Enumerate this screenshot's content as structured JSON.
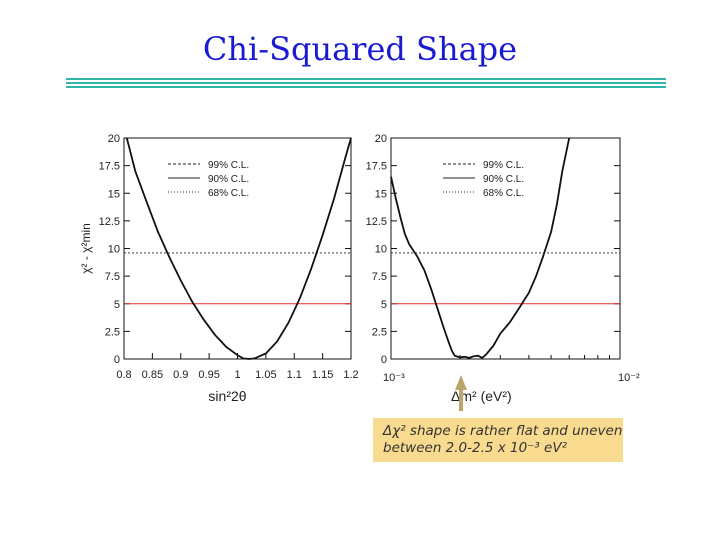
{
  "title": "Chi-Squared Shape",
  "note": {
    "line1": "Δχ² shape is rather flat and uneven",
    "line2": "between 2.0-2.5 x 10⁻³ eV²"
  },
  "colors": {
    "title": "#1a1ad0",
    "rule": "#2fb6a8",
    "red_line": "#e0302a",
    "note_bg": "#f8db8f",
    "arrow": "#b9a66b"
  },
  "chart_data": [
    {
      "type": "line",
      "xlabel": "sin²2θ",
      "ylabel": "χ² - χ²min",
      "xlim": [
        0.8,
        1.2
      ],
      "ylim": [
        0,
        20
      ],
      "xticks": [
        "0.8",
        "0.85",
        "0.9",
        "0.95",
        "1",
        "1.05",
        "1.1",
        "1.15",
        "1.2"
      ],
      "yticks": [
        "0",
        "2.5",
        "5",
        "7.5",
        "10",
        "12.5",
        "15",
        "17.5",
        "20"
      ],
      "legend": [
        {
          "label": "99% C.L.",
          "style": "dashed"
        },
        {
          "label": "90% C.L.",
          "style": "solid"
        },
        {
          "label": "68% C.L.",
          "style": "dotted"
        }
      ],
      "thresholds": [
        9.6,
        5.0
      ],
      "series": [
        {
          "x": [
            0.805,
            0.82,
            0.84,
            0.86,
            0.88,
            0.9,
            0.92,
            0.94,
            0.96,
            0.98,
            1.0,
            1.01,
            1.02,
            1.03,
            1.05,
            1.07,
            1.09,
            1.11,
            1.13,
            1.15,
            1.17,
            1.19,
            1.2
          ],
          "y": [
            20,
            17.0,
            14.2,
            11.5,
            9.2,
            7.1,
            5.2,
            3.6,
            2.2,
            1.1,
            0.35,
            0.05,
            0.0,
            0.05,
            0.5,
            1.6,
            3.3,
            5.5,
            8.2,
            11.2,
            14.5,
            18.2,
            20
          ]
        }
      ]
    },
    {
      "type": "line",
      "xlabel": "Δm² (eV²)",
      "xscale": "log",
      "xlim": [
        0.001,
        0.01
      ],
      "ylim": [
        0,
        20
      ],
      "xticks": [
        "10⁻³",
        "10⁻²"
      ],
      "yticks": [
        "0",
        "2.5",
        "5",
        "7.5",
        "10",
        "12.5",
        "15",
        "17.5",
        "20"
      ],
      "legend": [
        {
          "label": "99% C.L.",
          "style": "dashed"
        },
        {
          "label": "90% C.L.",
          "style": "solid"
        },
        {
          "label": "68% C.L.",
          "style": "dotted"
        }
      ],
      "thresholds": [
        9.6,
        5.0
      ],
      "series": [
        {
          "x": [
            0.001,
            0.00105,
            0.0011,
            0.00115,
            0.0012,
            0.0013,
            0.0014,
            0.0015,
            0.0016,
            0.0017,
            0.0018,
            0.00185,
            0.0019,
            0.002,
            0.0021,
            0.0022,
            0.0023,
            0.0024,
            0.0025,
            0.0026,
            0.0028,
            0.003,
            0.0033,
            0.0036,
            0.004,
            0.0043,
            0.0046,
            0.005,
            0.0053,
            0.0056,
            0.006
          ],
          "y": [
            16.5,
            14.5,
            12.8,
            11.3,
            10.4,
            9.3,
            8.0,
            6.3,
            4.5,
            2.8,
            1.3,
            0.7,
            0.3,
            0.15,
            0.2,
            0.1,
            0.25,
            0.3,
            0.1,
            0.4,
            1.2,
            2.3,
            3.3,
            4.5,
            6.0,
            7.5,
            9.2,
            11.5,
            14.0,
            17.0,
            20.0
          ]
        }
      ]
    }
  ]
}
